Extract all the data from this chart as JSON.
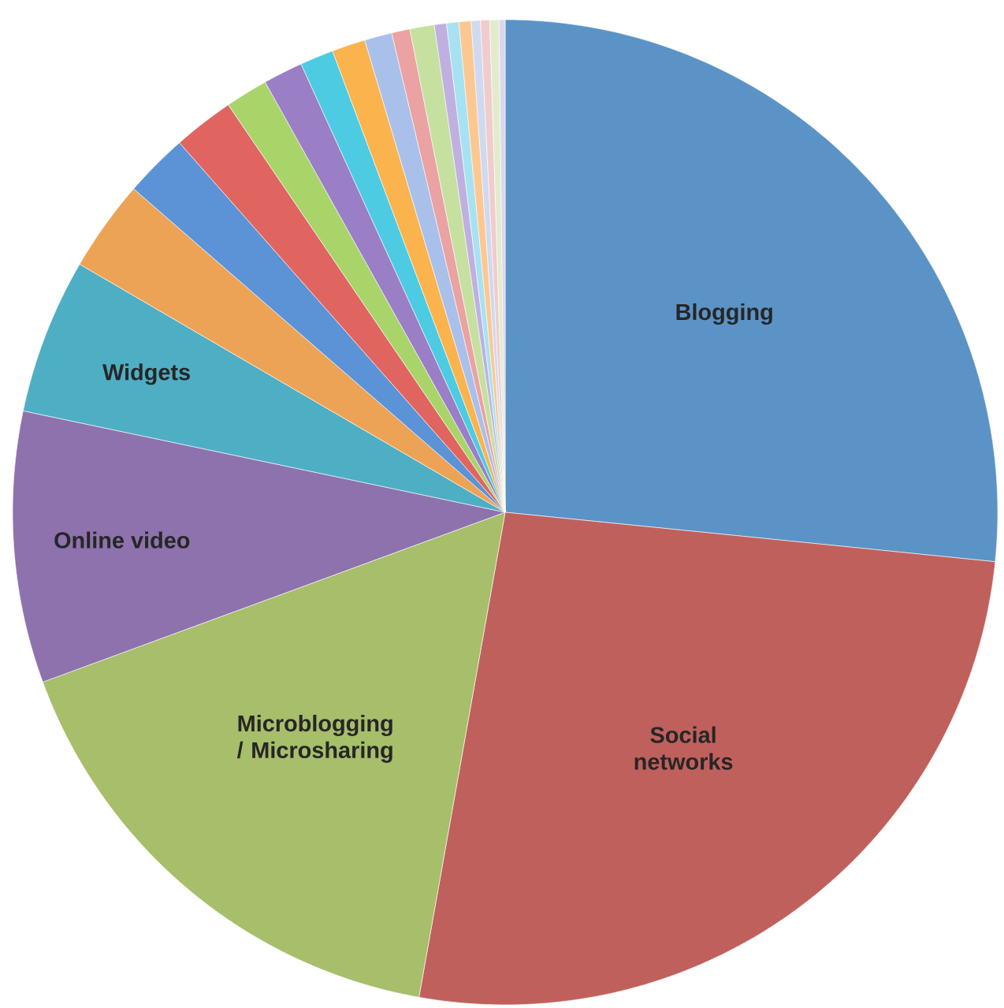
{
  "chart_data": {
    "type": "pie",
    "categories": [
      "Blogging",
      "Social networks",
      "Microblogging / Microsharing",
      "Online video",
      "Widgets",
      null,
      null,
      null,
      null,
      null,
      null,
      null,
      null,
      null,
      null,
      null,
      null,
      null,
      null,
      null,
      null,
      null
    ],
    "values": [
      26.6,
      26.2,
      16.6,
      8.9,
      5.1,
      3.0,
      2.1,
      2.0,
      1.4,
      1.3,
      1.1,
      1.1,
      0.9,
      0.6,
      0.8,
      0.4,
      0.4,
      0.4,
      0.3,
      0.3,
      0.3,
      0.2
    ],
    "colors": [
      "#5b93c6",
      "#c0605c",
      "#a7be6a",
      "#8d72ad",
      "#4eaec4",
      "#eda355",
      "#5b93d6",
      "#e06560",
      "#a9d46a",
      "#9a7ec6",
      "#4dcbe3",
      "#fbb34e",
      "#a9c0ea",
      "#eaa2a2",
      "#c6e0a0",
      "#c0b0e0",
      "#a6e2f2",
      "#fcc892",
      "#cfd9f0",
      "#f0cccc",
      "#e2eccc",
      "#ddd6ee"
    ]
  }
}
